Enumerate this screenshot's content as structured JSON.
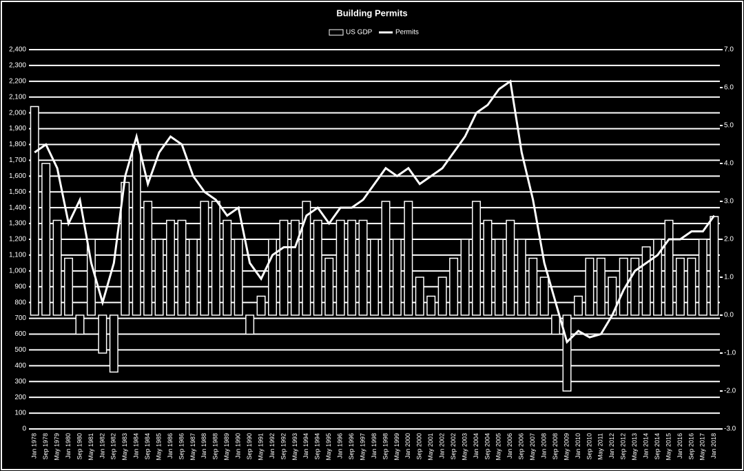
{
  "chart_data": {
    "type": "bar-line",
    "title": "Building Permits",
    "categories": [
      "Jan 1978",
      "Sep 1978",
      "May 1979",
      "Jan 1980",
      "Sep 1980",
      "May 1981",
      "Jan 1982",
      "Sep 1982",
      "May 1983",
      "Jan 1984",
      "Sep 1984",
      "May 1985",
      "Jan 1986",
      "Sep 1986",
      "May 1987",
      "Jan 1988",
      "Sep 1988",
      "May 1989",
      "Jan 1990",
      "Sep 1990",
      "May 1991",
      "Jan 1992",
      "Sep 1992",
      "May 1993",
      "Jan 1994",
      "Sep 1994",
      "May 1995",
      "Jan 1996",
      "Sep 1996",
      "May 1997",
      "Jan 1998",
      "Sep 1998",
      "May 1999",
      "Jan 2000",
      "Sep 2000",
      "May 2001",
      "Jan 2002",
      "Sep 2002",
      "May 2003",
      "Jan 2004",
      "Sep 2004",
      "May 2005",
      "Jan 2006",
      "Sep 2006",
      "May 2007",
      "Jan 2008",
      "Sep 2008",
      "May 2009",
      "Jan 2010",
      "Sep 2010",
      "May 2011",
      "Jan 2012",
      "Sep 2012",
      "May 2013",
      "Jan 2014",
      "Sep 2014",
      "May 2015",
      "Jan 2016",
      "Sep 2016",
      "May 2017",
      "Jan 2018"
    ],
    "series": [
      {
        "name": "US GDP",
        "kind": "bar",
        "axis": "y2",
        "color": "#ffffff",
        "values": [
          5.5,
          4,
          2.5,
          1.5,
          -0.5,
          2,
          -1,
          -1.5,
          3.5,
          4.5,
          3,
          2,
          2.5,
          2.5,
          2,
          3,
          3,
          2.5,
          2,
          -0.5,
          0.5,
          2,
          2.5,
          2.5,
          3,
          2.5,
          1.5,
          2.5,
          2.5,
          2.5,
          2,
          3,
          2,
          3,
          1,
          0.5,
          1,
          1.5,
          2,
          3,
          2.5,
          2,
          2.5,
          2,
          1.5,
          1,
          -0.5,
          -2,
          0.5,
          1.5,
          1.5,
          1,
          1.5,
          1.5,
          1.8,
          2,
          2.5,
          1.5,
          1.5,
          2,
          2.6
        ]
      },
      {
        "name": "Permits",
        "kind": "line",
        "color": "#ffffff",
        "values": [
          1750,
          1800,
          1650,
          1300,
          1450,
          1050,
          800,
          1050,
          1600,
          1850,
          1550,
          1750,
          1850,
          1800,
          1600,
          1500,
          1450,
          1350,
          1400,
          1050,
          950,
          1100,
          1150,
          1150,
          1350,
          1400,
          1300,
          1400,
          1400,
          1450,
          1550,
          1650,
          1600,
          1650,
          1550,
          1600,
          1650,
          1750,
          1850,
          2000,
          2050,
          2150,
          2200,
          1750,
          1450,
          1050,
          800,
          550,
          620,
          580,
          600,
          720,
          880,
          1000,
          1050,
          1100,
          1200,
          1200,
          1250,
          1250,
          1350
        ]
      }
    ],
    "ylim": [
      0,
      2400
    ],
    "yticks": [
      0,
      100,
      200,
      300,
      400,
      500,
      600,
      700,
      800,
      900,
      {
        "value": 1000,
        "label": "1,000"
      },
      {
        "value": 1100,
        "label": "1,100"
      },
      {
        "value": 1200,
        "label": "1,200"
      },
      {
        "value": 1300,
        "label": "1,300"
      },
      {
        "value": 1400,
        "label": "1,400"
      },
      {
        "value": 1500,
        "label": "1,500"
      },
      {
        "value": 1600,
        "label": "1,600"
      },
      {
        "value": 1700,
        "label": "1,700"
      },
      {
        "value": 1800,
        "label": "1,800"
      },
      {
        "value": 1900,
        "label": "1,900"
      },
      {
        "value": 2000,
        "label": "2,000"
      },
      {
        "value": 2100,
        "label": "2,100"
      },
      {
        "value": 2200,
        "label": "2,200"
      },
      {
        "value": 2300,
        "label": "2,300"
      },
      {
        "value": 2400,
        "label": "2,400"
      }
    ],
    "y2lim": [
      -3,
      7
    ],
    "y2ticks": [
      {
        "value": -3,
        "label": "-3.0"
      },
      {
        "value": -2,
        "label": "-2.0"
      },
      {
        "value": -1,
        "label": "-1.0"
      },
      {
        "value": 0,
        "label": "0.0"
      },
      {
        "value": 1,
        "label": "1.0"
      },
      {
        "value": 2,
        "label": "2.0"
      },
      {
        "value": 3,
        "label": "3.0"
      },
      {
        "value": 4,
        "label": "4.0"
      },
      {
        "value": 5,
        "label": "5.0"
      },
      {
        "value": 6,
        "label": "6.0"
      },
      {
        "value": 7,
        "label": "7.0"
      }
    ],
    "grid": true
  }
}
